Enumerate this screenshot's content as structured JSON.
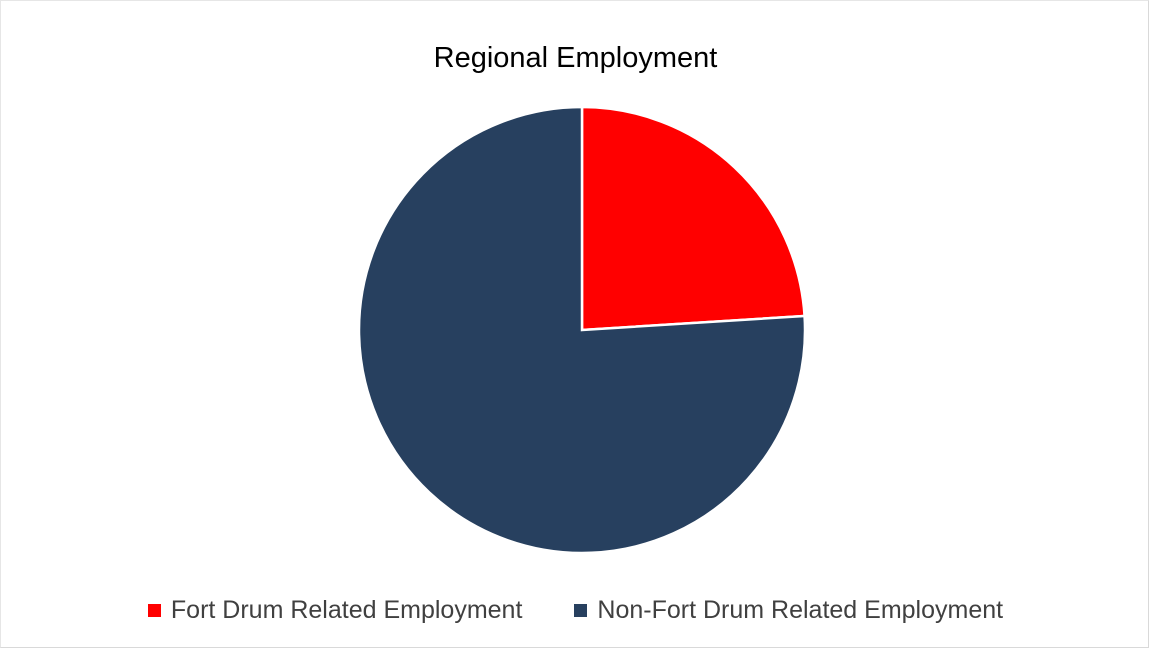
{
  "chart_data": {
    "type": "pie",
    "title": "Regional Employment",
    "series": [
      {
        "values": [
          24,
          76
        ]
      }
    ],
    "categories": [
      "Fort Drum Related Employment",
      "Non-Fort Drum Related Employment"
    ],
    "colors": [
      "#FF0000",
      "#27405F"
    ],
    "start_angle": "12 o'clock, clockwise",
    "legend": {
      "placement": "bottom",
      "entries": [
        "Fort Drum Related Employment",
        "Non-Fort Drum Related Employment"
      ]
    }
  }
}
